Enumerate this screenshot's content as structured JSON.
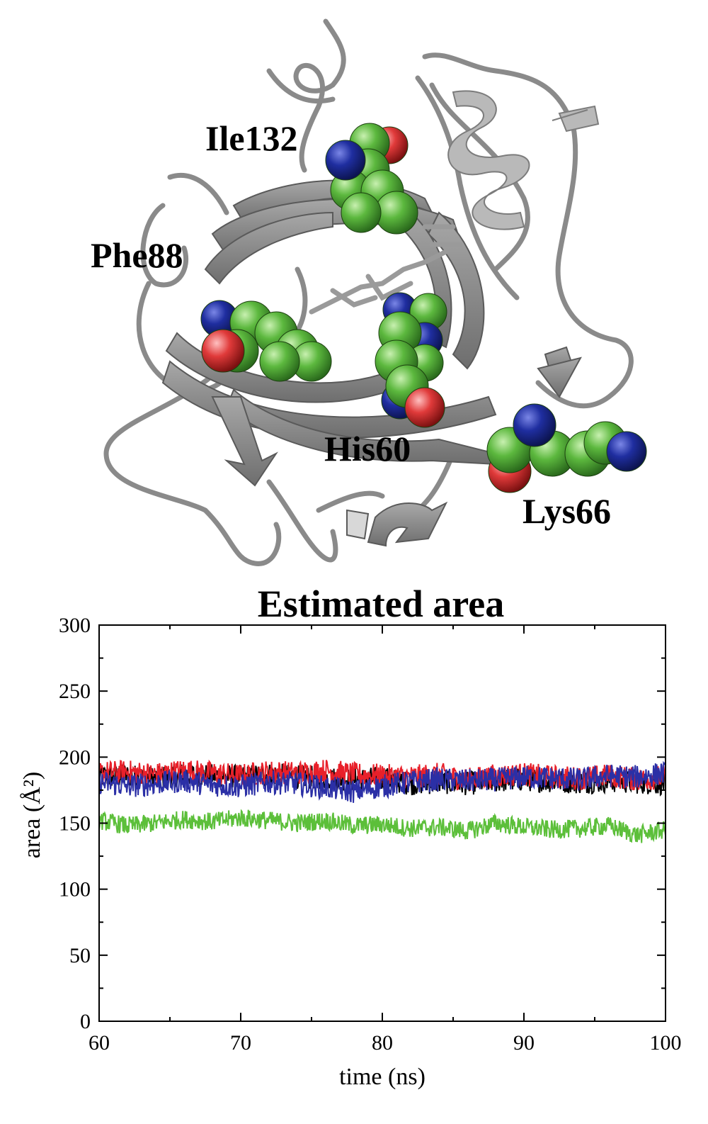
{
  "structure_panel": {
    "residue_labels": [
      "Ile132",
      "Phe88",
      "His60",
      "Lys66"
    ],
    "colors": {
      "ribbon": "#8c8c8c",
      "ribbon_light": "#bdbdbd",
      "carbon": "#4cae3a",
      "nitrogen": "#1d2c9c",
      "oxygen": "#e23a3a"
    }
  },
  "chart_data": {
    "type": "line",
    "title": "Estimated area",
    "xlabel": "time (ns)",
    "ylabel": "area (Å²)",
    "xlim": [
      60,
      100
    ],
    "ylim": [
      0,
      300
    ],
    "xticks": [
      "60",
      "70",
      "80",
      "90",
      "100"
    ],
    "yticks": [
      "0",
      "50",
      "100",
      "150",
      "200",
      "250",
      "300"
    ],
    "grid": false,
    "legend": "none",
    "series": [
      {
        "color": "#000000",
        "x": [
          60,
          62,
          64,
          66,
          68,
          70,
          72,
          74,
          76,
          78,
          80,
          82,
          84,
          86,
          88,
          90,
          92,
          94,
          96,
          98,
          100
        ],
        "values": [
          185,
          186,
          184,
          187,
          186,
          185,
          187,
          185,
          184,
          183,
          184,
          180,
          181,
          180,
          182,
          183,
          182,
          181,
          182,
          181,
          180
        ]
      },
      {
        "color": "#e8202a",
        "x": [
          60,
          62,
          64,
          66,
          68,
          70,
          72,
          74,
          76,
          78,
          80,
          82,
          84,
          86,
          88,
          90,
          92,
          94,
          96,
          98,
          100
        ],
        "values": [
          188,
          189,
          187,
          190,
          188,
          186,
          189,
          188,
          190,
          187,
          186,
          185,
          187,
          183,
          186,
          187,
          185,
          184,
          186,
          183,
          185
        ]
      },
      {
        "color": "#2b2fa6",
        "x": [
          60,
          62,
          64,
          66,
          68,
          70,
          72,
          74,
          76,
          78,
          80,
          82,
          84,
          86,
          88,
          90,
          92,
          94,
          96,
          98,
          100
        ],
        "values": [
          181,
          178,
          180,
          182,
          179,
          178,
          181,
          180,
          177,
          174,
          178,
          181,
          183,
          182,
          183,
          185,
          184,
          183,
          186,
          185,
          188
        ]
      },
      {
        "color": "#5cbf3a",
        "x": [
          60,
          62,
          64,
          66,
          68,
          70,
          72,
          74,
          76,
          78,
          80,
          82,
          84,
          86,
          88,
          90,
          92,
          94,
          96,
          98,
          100
        ],
        "values": [
          152,
          148,
          150,
          153,
          151,
          154,
          152,
          150,
          152,
          148,
          149,
          146,
          147,
          144,
          150,
          147,
          145,
          146,
          148,
          141,
          145
        ]
      }
    ]
  }
}
